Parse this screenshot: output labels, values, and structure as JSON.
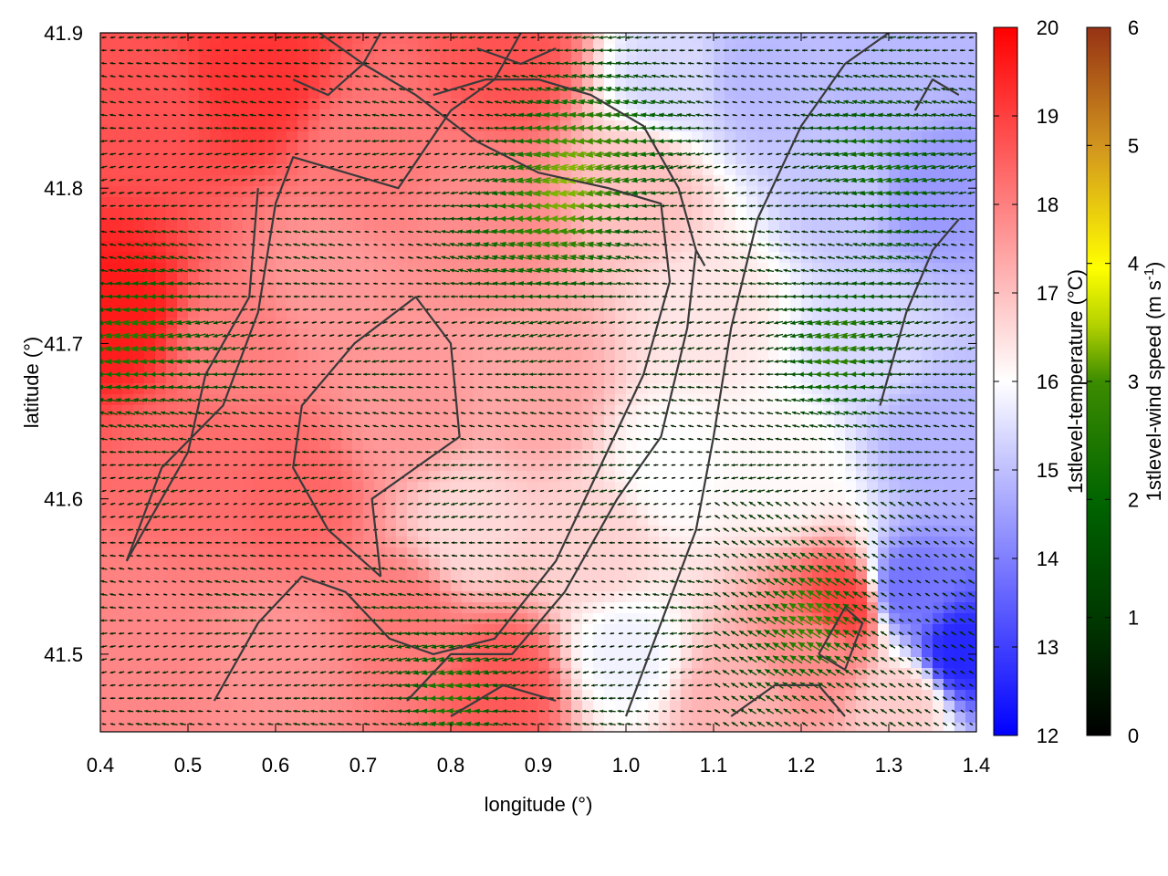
{
  "chart_data": {
    "type": "heatmap",
    "title": "",
    "xlabel": "longitude (°)",
    "ylabel": "latitude (°)",
    "xlim": [
      0.4,
      1.4
    ],
    "ylim": [
      41.45,
      41.9
    ],
    "x_ticks": [
      "0.4",
      "0.5",
      "0.6",
      "0.7",
      "0.8",
      "0.9",
      "1.0",
      "1.1",
      "1.2",
      "1.3",
      "1.4"
    ],
    "y_ticks": [
      "41.5",
      "41.6",
      "41.7",
      "41.8",
      "41.9"
    ],
    "x_tick_values": [
      0.4,
      0.5,
      0.6,
      0.7,
      0.8,
      0.9,
      1.0,
      1.1,
      1.2,
      1.3,
      1.4
    ],
    "y_tick_values": [
      41.5,
      41.6,
      41.7,
      41.8,
      41.9
    ],
    "temperature_colorbar": {
      "label": "1stlevel-temperature (°C)",
      "range": [
        12,
        20
      ],
      "ticks": [
        "12",
        "13",
        "14",
        "15",
        "16",
        "17",
        "18",
        "19",
        "20"
      ],
      "tick_values": [
        12,
        13,
        14,
        15,
        16,
        17,
        18,
        19,
        20
      ],
      "colors": [
        "#0000ff",
        "#ffffff",
        "#ff0000"
      ]
    },
    "wind_colorbar": {
      "label": "1stlevel-wind speed (m s-1)",
      "label_main": "1stlevel-wind speed (m s",
      "label_sup": "-1",
      "label_end": ")",
      "range": [
        0,
        6
      ],
      "ticks": [
        "0",
        "1",
        "2",
        "3",
        "4",
        "5",
        "6"
      ],
      "tick_values": [
        0,
        1,
        2,
        3,
        4,
        5,
        6
      ],
      "colors": [
        "#000000",
        "#005000",
        "#007800",
        "#8cb400",
        "#ffff00",
        "#d08c14",
        "#963214"
      ]
    },
    "temperature_anchors": [
      {
        "lon": 0.42,
        "lat": 41.72,
        "t": 19.6
      },
      {
        "lon": 0.45,
        "lat": 41.85,
        "t": 18.7
      },
      {
        "lon": 0.5,
        "lat": 41.62,
        "t": 18.3
      },
      {
        "lon": 0.58,
        "lat": 41.87,
        "t": 19.2
      },
      {
        "lon": 0.62,
        "lat": 41.6,
        "t": 18.4
      },
      {
        "lon": 0.55,
        "lat": 41.7,
        "t": 18.0
      },
      {
        "lon": 0.7,
        "lat": 41.82,
        "t": 18.1
      },
      {
        "lon": 0.66,
        "lat": 41.74,
        "t": 17.6
      },
      {
        "lon": 0.82,
        "lat": 41.58,
        "t": 16.6
      },
      {
        "lon": 0.9,
        "lat": 41.67,
        "t": 17.4
      },
      {
        "lon": 0.86,
        "lat": 41.48,
        "t": 18.6
      },
      {
        "lon": 0.87,
        "lat": 41.88,
        "t": 18.7
      },
      {
        "lon": 0.85,
        "lat": 41.78,
        "t": 17.8
      },
      {
        "lon": 1.02,
        "lat": 41.8,
        "t": 17.0
      },
      {
        "lon": 1.05,
        "lat": 41.62,
        "t": 16.0
      },
      {
        "lon": 1.0,
        "lat": 41.5,
        "t": 15.8
      },
      {
        "lon": 1.05,
        "lat": 41.87,
        "t": 15.4
      },
      {
        "lon": 1.15,
        "lat": 41.87,
        "t": 14.9
      },
      {
        "lon": 1.25,
        "lat": 41.8,
        "t": 15.1
      },
      {
        "lon": 1.3,
        "lat": 41.86,
        "t": 14.9
      },
      {
        "lon": 1.35,
        "lat": 41.8,
        "t": 14.4
      },
      {
        "lon": 1.28,
        "lat": 41.7,
        "t": 15.4
      },
      {
        "lon": 1.35,
        "lat": 41.64,
        "t": 14.8
      },
      {
        "lon": 1.38,
        "lat": 41.5,
        "t": 12.6
      },
      {
        "lon": 1.32,
        "lat": 41.54,
        "t": 13.8
      },
      {
        "lon": 1.22,
        "lat": 41.5,
        "t": 17.8
      },
      {
        "lon": 1.25,
        "lat": 41.53,
        "t": 19.0
      },
      {
        "lon": 1.18,
        "lat": 41.62,
        "t": 16.1
      },
      {
        "lon": 1.12,
        "lat": 41.47,
        "t": 17.2
      },
      {
        "lon": 0.75,
        "lat": 41.52,
        "t": 18.1
      },
      {
        "lon": 0.6,
        "lat": 41.5,
        "t": 17.7
      },
      {
        "lon": 0.45,
        "lat": 41.5,
        "t": 17.9
      },
      {
        "lon": 0.75,
        "lat": 41.66,
        "t": 17.6
      },
      {
        "lon": 0.97,
        "lat": 41.57,
        "t": 16.7
      },
      {
        "lon": 1.32,
        "lat": 41.47,
        "t": 16.8
      },
      {
        "lon": 1.1,
        "lat": 41.72,
        "t": 16.4
      }
    ],
    "wind_field": {
      "direction": "mostly westward (from the east), north-westward near south-east corner",
      "grid_spacing_deg": [
        0.01,
        0.01
      ],
      "max_speed": 3.6,
      "strong_zones": [
        {
          "lon": 0.45,
          "lat": 41.7,
          "speed": 2.6
        },
        {
          "lon": 0.9,
          "lat": 41.77,
          "speed": 2.7
        },
        {
          "lon": 0.97,
          "lat": 41.83,
          "speed": 2.9
        },
        {
          "lon": 1.25,
          "lat": 41.7,
          "speed": 2.4
        },
        {
          "lon": 1.3,
          "lat": 41.82,
          "speed": 2.3
        },
        {
          "lon": 0.8,
          "lat": 41.48,
          "speed": 2.2
        },
        {
          "lon": 1.2,
          "lat": 41.52,
          "speed": 2.6
        }
      ]
    },
    "contours": [
      [
        [
          0.53,
          41.47
        ],
        [
          0.58,
          41.52
        ],
        [
          0.63,
          41.55
        ],
        [
          0.68,
          41.54
        ],
        [
          0.73,
          41.51
        ],
        [
          0.78,
          41.5
        ],
        [
          0.85,
          41.51
        ],
        [
          0.92,
          41.56
        ],
        [
          0.97,
          41.62
        ],
        [
          1.02,
          41.68
        ],
        [
          1.05,
          41.74
        ],
        [
          1.04,
          41.79
        ],
        [
          0.98,
          41.8
        ],
        [
          0.9,
          41.81
        ],
        [
          0.83,
          41.83
        ],
        [
          0.76,
          41.86
        ],
        [
          0.7,
          41.88
        ],
        [
          0.65,
          41.9
        ]
      ],
      [
        [
          0.75,
          41.47
        ],
        [
          0.8,
          41.5
        ],
        [
          0.87,
          41.5
        ],
        [
          0.93,
          41.54
        ],
        [
          0.99,
          41.6
        ],
        [
          1.04,
          41.64
        ],
        [
          1.07,
          41.71
        ],
        [
          1.08,
          41.76
        ],
        [
          1.06,
          41.8
        ],
        [
          1.02,
          41.84
        ],
        [
          0.96,
          41.86
        ],
        [
          0.9,
          41.87
        ],
        [
          0.84,
          41.87
        ],
        [
          0.78,
          41.86
        ]
      ],
      [
        [
          0.43,
          41.56
        ],
        [
          0.47,
          41.62
        ],
        [
          0.54,
          41.66
        ],
        [
          0.58,
          41.72
        ],
        [
          0.6,
          41.79
        ],
        [
          0.62,
          41.82
        ],
        [
          0.68,
          41.81
        ],
        [
          0.74,
          41.8
        ],
        [
          0.8,
          41.85
        ],
        [
          0.85,
          41.87
        ],
        [
          0.88,
          41.9
        ]
      ],
      [
        [
          0.58,
          41.8
        ],
        [
          0.57,
          41.73
        ],
        [
          0.52,
          41.68
        ],
        [
          0.5,
          41.63
        ],
        [
          0.45,
          41.58
        ],
        [
          0.43,
          41.56
        ]
      ],
      [
        [
          0.72,
          41.55
        ],
        [
          0.71,
          41.6
        ],
        [
          0.76,
          41.62
        ],
        [
          0.81,
          41.64
        ],
        [
          0.8,
          41.7
        ],
        [
          0.76,
          41.73
        ],
        [
          0.69,
          41.7
        ],
        [
          0.63,
          41.66
        ],
        [
          0.62,
          41.62
        ],
        [
          0.66,
          41.58
        ],
        [
          0.72,
          41.55
        ]
      ],
      [
        [
          1.0,
          41.46
        ],
        [
          1.04,
          41.52
        ],
        [
          1.08,
          41.58
        ],
        [
          1.1,
          41.64
        ],
        [
          1.12,
          41.71
        ],
        [
          1.15,
          41.78
        ],
        [
          1.2,
          41.84
        ],
        [
          1.25,
          41.88
        ],
        [
          1.3,
          41.9
        ]
      ],
      [
        [
          1.12,
          41.46
        ],
        [
          1.17,
          41.48
        ],
        [
          1.22,
          41.48
        ],
        [
          1.25,
          41.46
        ]
      ],
      [
        [
          1.22,
          41.5
        ],
        [
          1.25,
          41.53
        ],
        [
          1.27,
          41.52
        ],
        [
          1.25,
          41.49
        ],
        [
          1.22,
          41.5
        ]
      ],
      [
        [
          1.29,
          41.66
        ],
        [
          1.32,
          41.72
        ],
        [
          1.35,
          41.76
        ],
        [
          1.38,
          41.78
        ]
      ],
      [
        [
          0.8,
          41.46
        ],
        [
          0.86,
          41.48
        ],
        [
          0.92,
          41.47
        ]
      ],
      [
        [
          0.62,
          41.87
        ],
        [
          0.66,
          41.86
        ],
        [
          0.7,
          41.88
        ],
        [
          0.72,
          41.9
        ]
      ],
      [
        [
          0.83,
          41.89
        ],
        [
          0.88,
          41.88
        ],
        [
          0.92,
          41.89
        ]
      ],
      [
        [
          1.33,
          41.85
        ],
        [
          1.35,
          41.87
        ],
        [
          1.38,
          41.86
        ]
      ],
      [
        [
          1.08,
          41.76
        ],
        [
          1.09,
          41.75
        ]
      ]
    ]
  }
}
